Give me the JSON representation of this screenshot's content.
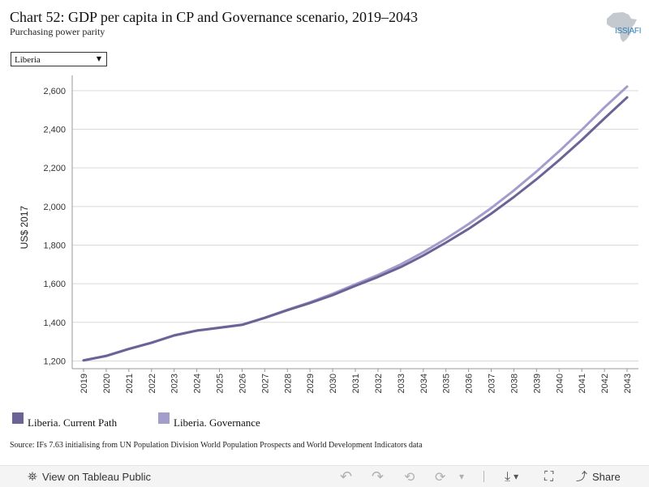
{
  "header": {
    "title": "Chart 52: GDP per capita in CP and Governance scenario, 2019–2043",
    "subtitle": "Purchasing power parity",
    "logo_text": "ISS|AFI"
  },
  "filter": {
    "selected": "Liberia"
  },
  "chart_data": {
    "type": "line",
    "title": "Chart 52: GDP per capita in CP and Governance scenario, 2019–2043",
    "subtitle": "Purchasing power parity",
    "xlabel": "",
    "ylabel": "US$ 2017",
    "x": [
      2019,
      2020,
      2021,
      2022,
      2023,
      2024,
      2025,
      2026,
      2027,
      2028,
      2029,
      2030,
      2031,
      2032,
      2033,
      2034,
      2035,
      2036,
      2037,
      2038,
      2039,
      2040,
      2041,
      2042,
      2043
    ],
    "ylim": [
      1160,
      2700
    ],
    "yticks": [
      1200,
      1400,
      1600,
      1800,
      2000,
      2200,
      2400,
      2600
    ],
    "ytick_labels": [
      "1,200",
      "1,400",
      "1,600",
      "1,800",
      "2,000",
      "2,200",
      "2,400",
      "2,600"
    ],
    "grid": true,
    "legend_position": "bottom-left",
    "series": [
      {
        "name": "Liberia. Current Path",
        "color": "#6b6395",
        "values": [
          1203,
          1226,
          1262,
          1294,
          1332,
          1357,
          1372,
          1387,
          1423,
          1463,
          1500,
          1541,
          1589,
          1635,
          1686,
          1746,
          1813,
          1884,
          1963,
          2049,
          2141,
          2240,
          2345,
          2456,
          2565
        ]
      },
      {
        "name": "Liberia. Governance",
        "color": "#a39dcc",
        "values": [
          1203,
          1227,
          1263,
          1295,
          1333,
          1358,
          1373,
          1388,
          1424,
          1465,
          1504,
          1548,
          1597,
          1645,
          1700,
          1763,
          1833,
          1909,
          1992,
          2083,
          2181,
          2286,
          2397,
          2513,
          2621
        ]
      }
    ]
  },
  "source": "Source: IFs 7.63 initialising from UN Population Division World Population Prospects and World Development Indicators data",
  "toolbar": {
    "view_label": "View on Tableau Public",
    "share_label": "Share",
    "icons": {
      "view": "⛯",
      "undo": "↶",
      "redo": "↷",
      "revert": "⟲",
      "refresh": "⟳",
      "dropdown": "▾",
      "download": "⤓",
      "fullscreen": "⛶",
      "share": "⤴"
    }
  },
  "colors": {
    "current_path": "#6b6395",
    "governance": "#a39dcc",
    "grid": "#d9d9d9"
  }
}
